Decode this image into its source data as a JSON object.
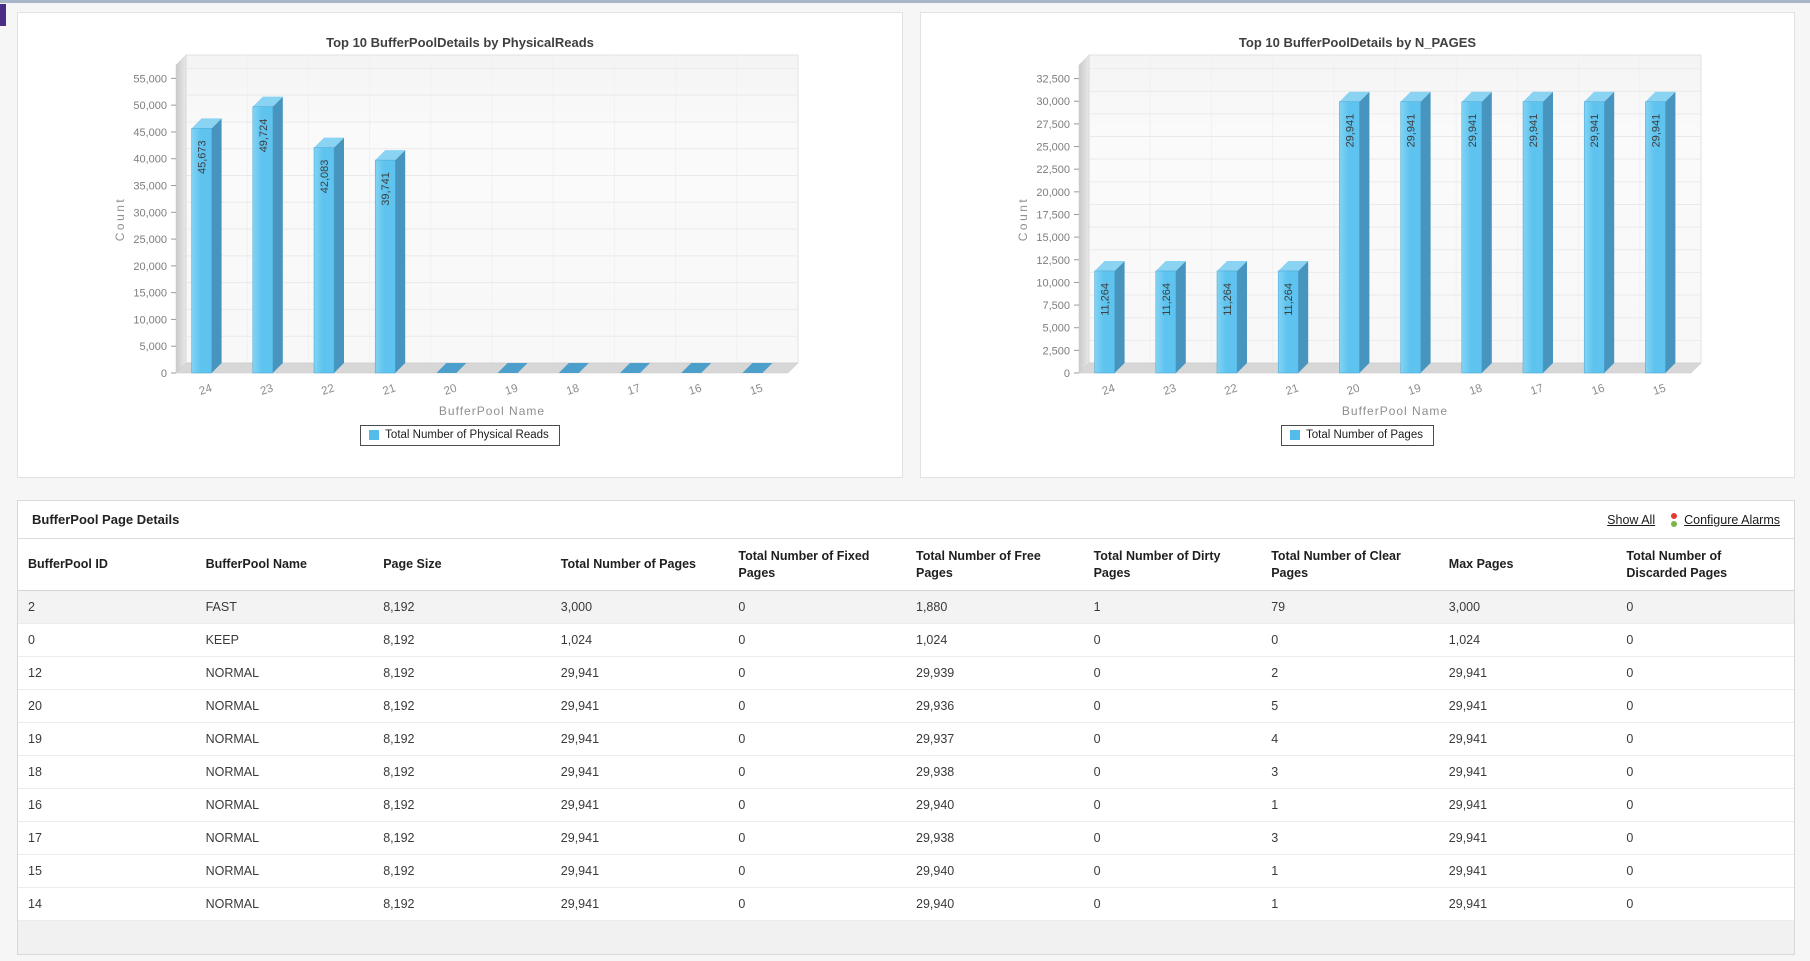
{
  "page": {
    "top_strip_color": "#a9b5c8",
    "corner_mark_color": "#4a2d86"
  },
  "colors": {
    "bar_front": "#5ec4ef",
    "bar_front_light": "#83d3f4",
    "bar_side": "#4795be",
    "bar_top": "#8bd3f3",
    "bar_zero": "#4c9ecb",
    "legend_swatch": "#53bcea",
    "link": "#1b1b1b",
    "alarm_red": "#e03c31",
    "alarm_green": "#7ab648"
  },
  "chart_data": [
    {
      "type": "bar",
      "title": "Top 10 BufferPoolDetails by PhysicalReads",
      "xlabel": "BufferPool Name",
      "ylabel": "Count",
      "legend": "Total Number of Physical Reads",
      "legend_position": "bottom",
      "grid": true,
      "categories": [
        "24",
        "23",
        "22",
        "21",
        "20",
        "19",
        "18",
        "17",
        "16",
        "15"
      ],
      "values": [
        45673,
        49724,
        42083,
        39741,
        0,
        0,
        0,
        0,
        0,
        0
      ],
      "value_labels": [
        "45,673",
        "49,724",
        "42,083",
        "39,741",
        "",
        "",
        "",
        "",
        "",
        ""
      ],
      "y_tick_step": 5000,
      "y_tick_max": 55000,
      "y_scale_max": 57500,
      "ylim": [
        0,
        57500
      ]
    },
    {
      "type": "bar",
      "title": "Top 10 BufferPoolDetails by N_PAGES",
      "xlabel": "BufferPool Name",
      "ylabel": "Count",
      "legend": "Total Number of Pages",
      "legend_position": "bottom",
      "grid": true,
      "categories": [
        "24",
        "23",
        "22",
        "21",
        "20",
        "19",
        "18",
        "17",
        "16",
        "15"
      ],
      "values": [
        11264,
        11264,
        11264,
        11264,
        29941,
        29941,
        29941,
        29941,
        29941,
        29941
      ],
      "value_labels": [
        "11,264",
        "11,264",
        "11,264",
        "11,264",
        "29,941",
        "29,941",
        "29,941",
        "29,941",
        "29,941",
        "29,941"
      ],
      "y_tick_step": 2500,
      "y_tick_max": 32500,
      "y_scale_max": 34000,
      "ylim": [
        0,
        34000
      ]
    }
  ],
  "table": {
    "title": "BufferPool Page Details",
    "show_all_label": "Show All",
    "configure_alarms_label": "Configure Alarms",
    "columns": [
      "BufferPool ID",
      "BufferPool Name",
      "Page Size",
      "Total Number of Pages",
      "Total Number of Fixed Pages",
      "Total Number of Free Pages",
      "Total Number of Dirty Pages",
      "Total Number of Clear Pages",
      "Max Pages",
      "Total Number of Discarded Pages"
    ],
    "rows": [
      [
        "2",
        "FAST",
        "8,192",
        "3,000",
        "0",
        "1,880",
        "1",
        "79",
        "3,000",
        "0"
      ],
      [
        "0",
        "KEEP",
        "8,192",
        "1,024",
        "0",
        "1,024",
        "0",
        "0",
        "1,024",
        "0"
      ],
      [
        "12",
        "NORMAL",
        "8,192",
        "29,941",
        "0",
        "29,939",
        "0",
        "2",
        "29,941",
        "0"
      ],
      [
        "20",
        "NORMAL",
        "8,192",
        "29,941",
        "0",
        "29,936",
        "0",
        "5",
        "29,941",
        "0"
      ],
      [
        "19",
        "NORMAL",
        "8,192",
        "29,941",
        "0",
        "29,937",
        "0",
        "4",
        "29,941",
        "0"
      ],
      [
        "18",
        "NORMAL",
        "8,192",
        "29,941",
        "0",
        "29,938",
        "0",
        "3",
        "29,941",
        "0"
      ],
      [
        "16",
        "NORMAL",
        "8,192",
        "29,941",
        "0",
        "29,940",
        "0",
        "1",
        "29,941",
        "0"
      ],
      [
        "17",
        "NORMAL",
        "8,192",
        "29,941",
        "0",
        "29,938",
        "0",
        "3",
        "29,941",
        "0"
      ],
      [
        "15",
        "NORMAL",
        "8,192",
        "29,941",
        "0",
        "29,940",
        "0",
        "1",
        "29,941",
        "0"
      ],
      [
        "14",
        "NORMAL",
        "8,192",
        "29,941",
        "0",
        "29,940",
        "0",
        "1",
        "29,941",
        "0"
      ]
    ]
  }
}
